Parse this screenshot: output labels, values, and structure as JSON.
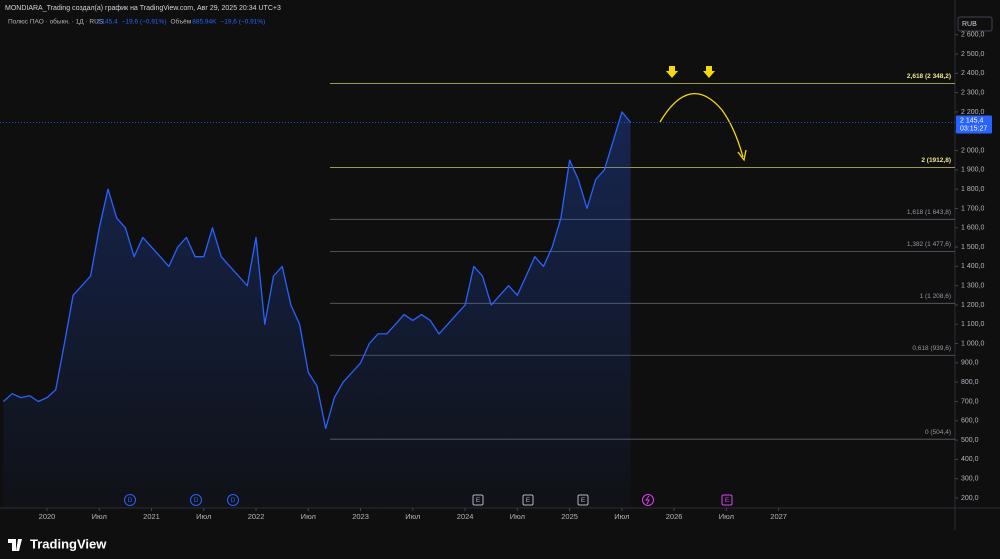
{
  "header": "MONDIARA_Trading создал(а) график на TradingView.com, Авг 29, 2025 20:34 UTC+3",
  "footer": "TradingView",
  "chart_data": {
    "type": "line",
    "symbol": "Полюс ПАО · обыкн. · 1Д · RUS",
    "legend_price": "2 145,4",
    "legend_change": "−19,6 (−0,91%)",
    "volume_label": "Объём",
    "volume": "885,94K",
    "volume_change": "−19,6 (−0,91%)",
    "currency": "RUB",
    "x": [
      "2019-08",
      "2019-09",
      "2019-10",
      "2019-11",
      "2019-12",
      "2020-01",
      "2020-02",
      "2020-03",
      "2020-04",
      "2020-05",
      "2020-06",
      "2020-07",
      "2020-08",
      "2020-09",
      "2020-10",
      "2020-11",
      "2020-12",
      "2021-01",
      "2021-02",
      "2021-03",
      "2021-04",
      "2021-05",
      "2021-06",
      "2021-07",
      "2021-08",
      "2021-09",
      "2021-10",
      "2021-11",
      "2021-12",
      "2022-01",
      "2022-02",
      "2022-03",
      "2022-04",
      "2022-05",
      "2022-06",
      "2022-07",
      "2022-08",
      "2022-09",
      "2022-10",
      "2022-11",
      "2022-12",
      "2023-01",
      "2023-02",
      "2023-03",
      "2023-04",
      "2023-05",
      "2023-06",
      "2023-07",
      "2023-08",
      "2023-09",
      "2023-10",
      "2023-11",
      "2023-12",
      "2024-01",
      "2024-02",
      "2024-03",
      "2024-04",
      "2024-05",
      "2024-06",
      "2024-07",
      "2024-08",
      "2024-09",
      "2024-10",
      "2024-11",
      "2024-12",
      "2025-01",
      "2025-02",
      "2025-03",
      "2025-04",
      "2025-05",
      "2025-06",
      "2025-07",
      "2025-08"
    ],
    "series": [
      {
        "name": "Полюс ПАО",
        "color": "#2962ff",
        "values": [
          700,
          740,
          720,
          730,
          700,
          720,
          760,
          1000,
          1250,
          1300,
          1350,
          1600,
          1800,
          1650,
          1600,
          1450,
          1550,
          1500,
          1450,
          1400,
          1500,
          1550,
          1450,
          1450,
          1600,
          1450,
          1400,
          1350,
          1300,
          1550,
          1100,
          1350,
          1400,
          1200,
          1100,
          850,
          780,
          560,
          720,
          800,
          850,
          900,
          1000,
          1050,
          1050,
          1100,
          1150,
          1120,
          1150,
          1120,
          1050,
          1100,
          1150,
          1200,
          1400,
          1350,
          1200,
          1250,
          1300,
          1250,
          1350,
          1450,
          1400,
          1500,
          1650,
          1950,
          1850,
          1700,
          1850,
          1900,
          2050,
          2200,
          2145.4
        ]
      }
    ],
    "last_price": {
      "value": 2145.4,
      "label": "2 145,4",
      "countdown": "03:15:27"
    },
    "levels": [
      {
        "value": 2348.2,
        "label": "2,618 (2 348,2)",
        "color": "#c8c85a"
      },
      {
        "value": 1912.8,
        "label": "2 (1912,8)",
        "color": "#c8c85a"
      },
      {
        "value": 1643.8,
        "label": "1,618 (1 643,8)",
        "color": "#5d606b"
      },
      {
        "value": 1477.6,
        "label": "1,382 (1 477,6)",
        "color": "#5d606b"
      },
      {
        "value": 1208.6,
        "label": "1 (1 208,6)",
        "color": "#5d606b"
      },
      {
        "value": 939.6,
        "label": "0,618 (939,6)",
        "color": "#5d606b"
      },
      {
        "value": 504.4,
        "label": "0 (504,4)",
        "color": "#5d606b"
      }
    ],
    "events": [
      {
        "label": "D",
        "color": "#2962ff"
      },
      {
        "label": "D",
        "color": "#2962ff"
      },
      {
        "label": "D",
        "color": "#2962ff"
      },
      {
        "label": "E",
        "color": "#b2b5be"
      },
      {
        "label": "E",
        "color": "#b2b5be"
      },
      {
        "label": "E",
        "color": "#b2b5be"
      },
      {
        "label": "E",
        "color": "#e040fb"
      }
    ],
    "ylim": [
      148,
      2780
    ],
    "yticks": [
      {
        "value": 200,
        "label": "200,0"
      },
      {
        "value": 300,
        "label": "300,0"
      },
      {
        "value": 400,
        "label": "400,0"
      },
      {
        "value": 500,
        "label": "500,0"
      },
      {
        "value": 600,
        "label": "600,0"
      },
      {
        "value": 700,
        "label": "700,0"
      },
      {
        "value": 800,
        "label": "800,0"
      },
      {
        "value": 900,
        "label": "900,0"
      },
      {
        "value": 1000,
        "label": "1 000,0"
      },
      {
        "value": 1100,
        "label": "1 100,0"
      },
      {
        "value": 1200,
        "label": "1 200,0"
      },
      {
        "value": 1300,
        "label": "1 300,0"
      },
      {
        "value": 1400,
        "label": "1 400,0"
      },
      {
        "value": 1500,
        "label": "1 500,0"
      },
      {
        "value": 1600,
        "label": "1 600,0"
      },
      {
        "value": 1700,
        "label": "1 700,0"
      },
      {
        "value": 1800,
        "label": "1 800,0"
      },
      {
        "value": 1900,
        "label": "1 900,0"
      },
      {
        "value": 2000,
        "label": "2 000,0"
      },
      {
        "value": 2100,
        "label": "2 100,0"
      },
      {
        "value": 2200,
        "label": "2 200,0"
      },
      {
        "value": 2300,
        "label": "2 300,0"
      },
      {
        "value": 2400,
        "label": "2 400,0"
      },
      {
        "value": 2500,
        "label": "2 500,0"
      },
      {
        "value": 2600,
        "label": "2 600,0"
      }
    ],
    "xticks": [
      {
        "value": "2020-01",
        "label": "2020"
      },
      {
        "value": "2020-07",
        "label": "Июл"
      },
      {
        "value": "2021-01",
        "label": "2021"
      },
      {
        "value": "2021-07",
        "label": "Июл"
      },
      {
        "value": "2022-01",
        "label": "2022"
      },
      {
        "value": "2022-07",
        "label": "Июл"
      },
      {
        "value": "2023-01",
        "label": "2023"
      },
      {
        "value": "2023-07",
        "label": "Июл"
      },
      {
        "value": "2024-01",
        "label": "2024"
      },
      {
        "value": "2024-07",
        "label": "Июл"
      },
      {
        "value": "2025-01",
        "label": "2025"
      },
      {
        "value": "2025-07",
        "label": "Июл"
      },
      {
        "value": "2026-01",
        "label": "2026"
      },
      {
        "value": "2026-07",
        "label": "Июл"
      },
      {
        "value": "2027-01",
        "label": "2027"
      }
    ]
  }
}
